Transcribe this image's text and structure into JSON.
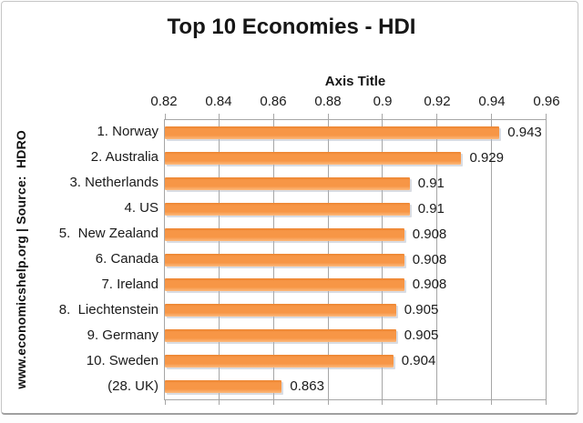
{
  "chart_data": {
    "type": "bar",
    "orientation": "horizontal",
    "title": "Top 10 Economies - HDI",
    "axis_title": "Axis Title",
    "watermark": "www.economicshelp.org | Source:  HDRO",
    "xlim": [
      0.82,
      0.96
    ],
    "x_ticks": [
      "0.82",
      "0.84",
      "0.86",
      "0.88",
      "0.9",
      "0.92",
      "0.94",
      "0.96"
    ],
    "grid": true,
    "legend": "none",
    "bar_color": "#F79646",
    "categories": [
      "1. Norway",
      "2. Australia",
      "3. Netherlands",
      "4. US",
      "5.  New Zealand",
      "6. Canada",
      "7. Ireland",
      "8.  Liechtenstein",
      "9. Germany",
      "10. Sweden",
      "(28. UK)"
    ],
    "values": [
      0.943,
      0.929,
      0.91,
      0.91,
      0.908,
      0.908,
      0.908,
      0.905,
      0.905,
      0.904,
      0.863
    ],
    "value_labels": [
      "0.943",
      "0.929",
      "0.91",
      "0.91",
      "0.908",
      "0.908",
      "0.908",
      "0.905",
      "0.905",
      "0.904",
      "0.863"
    ]
  }
}
